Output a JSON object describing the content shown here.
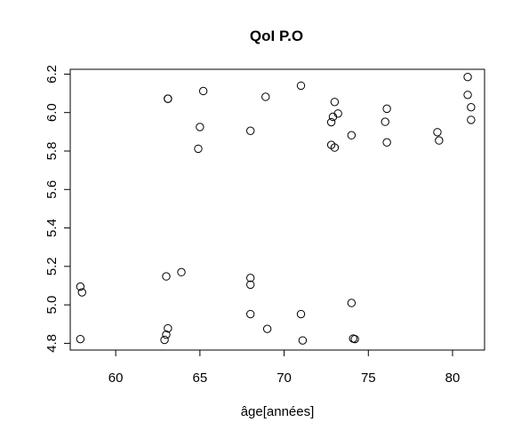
{
  "chart_data": {
    "type": "scatter",
    "title": "QoI P.O",
    "xlabel": "âge[années]",
    "ylabel": "",
    "xlim": [
      57.3,
      81.9
    ],
    "ylim": [
      4.765,
      6.225
    ],
    "xticks": [
      60,
      65,
      70,
      75,
      80
    ],
    "yticks": [
      4.8,
      5.0,
      5.2,
      5.4,
      5.6,
      5.8,
      6.0,
      6.2
    ],
    "xtick_labels": [
      "60",
      "65",
      "70",
      "75",
      "80"
    ],
    "ytick_labels": [
      "4.8",
      "5.0",
      "5.2",
      "5.4",
      "5.6",
      "5.8",
      "6.0",
      "6.2"
    ],
    "grid": false,
    "marker": "open-circle",
    "series": [
      {
        "x": [
          57.9,
          58.0,
          57.9,
          63.1,
          63.0,
          63.9,
          62.9,
          63.0,
          63.1,
          68.0,
          68.0,
          68.0,
          69.0,
          71.0,
          71.1,
          74.0,
          74.1,
          74.2,
          63.1,
          65.2,
          65.0,
          64.9,
          68.9,
          68.0,
          71.0,
          73.0,
          73.2,
          72.9,
          72.8,
          72.8,
          73.0,
          74.0,
          76.1,
          76.0,
          76.1,
          79.1,
          79.2,
          80.9,
          80.9,
          81.1,
          81.1
        ],
        "y": [
          5.095,
          5.065,
          4.822,
          6.072,
          5.148,
          5.17,
          4.818,
          4.845,
          4.878,
          5.14,
          5.105,
          4.952,
          4.875,
          4.952,
          4.815,
          5.01,
          4.825,
          4.822,
          6.072,
          6.112,
          5.925,
          5.812,
          6.082,
          5.905,
          6.14,
          6.055,
          5.995,
          5.978,
          5.95,
          5.832,
          5.818,
          5.882,
          6.02,
          5.952,
          5.845,
          5.898,
          5.855,
          6.185,
          6.092,
          6.028,
          5.962
        ]
      }
    ]
  }
}
